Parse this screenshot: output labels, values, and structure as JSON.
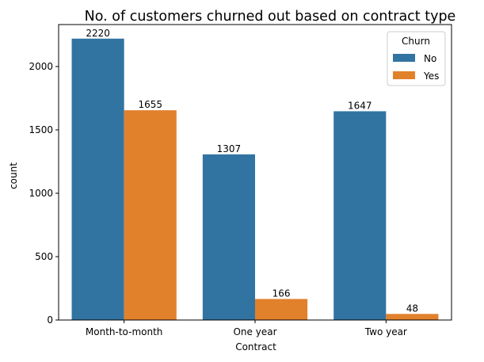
{
  "chart_data": {
    "type": "bar",
    "title": "No. of customers churned out based on contract type",
    "xlabel": "Contract",
    "ylabel": "count",
    "categories": [
      "Month-to-month",
      "One year",
      "Two year"
    ],
    "series": [
      {
        "name": "No",
        "color": "#3274a1",
        "values": [
          2220,
          1307,
          1647
        ]
      },
      {
        "name": "Yes",
        "color": "#e1812c",
        "values": [
          1655,
          166,
          48
        ]
      }
    ],
    "ylim": [
      0,
      2331
    ],
    "yticks": [
      0,
      500,
      1000,
      1500,
      2000
    ],
    "grid": false,
    "legend": {
      "title": "Churn",
      "position": "top-right"
    }
  }
}
